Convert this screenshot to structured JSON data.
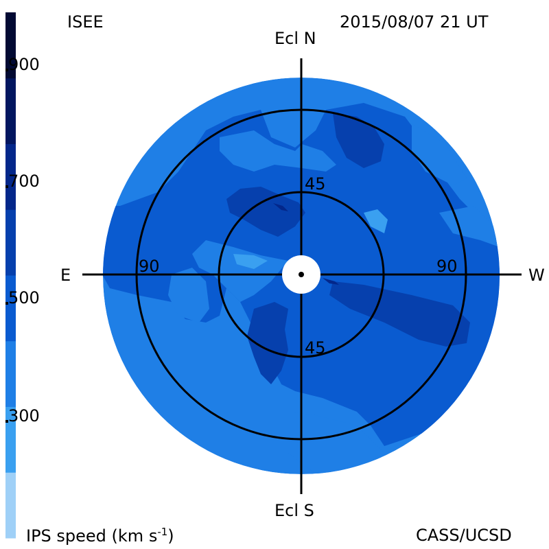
{
  "header": {
    "left_label": "ISEE",
    "timestamp": "2015/08/07 21 UT"
  },
  "footer": {
    "quantity_label": "IPS speed (km s",
    "quantity_exponent": "-1",
    "quantity_close": ")",
    "credit": "CASS/UCSD"
  },
  "map": {
    "north_label": "Ecl N",
    "south_label": "Ecl S",
    "east_label": "E",
    "west_label": "W",
    "ring_labels": {
      "inner_top": "45",
      "inner_bottom": "45",
      "outer_left": "90",
      "outer_right": "90"
    }
  },
  "colorbar": {
    "tick_labels": [
      "900",
      "700",
      "500",
      "300"
    ],
    "band_colors": [
      "#9fd0f7",
      "#3aa0f0",
      "#1f7fe6",
      "#0a5bd0",
      "#0640ad",
      "#03278a",
      "#021660",
      "#020a33"
    ],
    "palette": {
      "bg_outer": "#1f7fe6",
      "mid": "#0a5bd0",
      "dark": "#0640ad",
      "darkest": "#03278a",
      "light": "#3aa0f0"
    }
  }
}
